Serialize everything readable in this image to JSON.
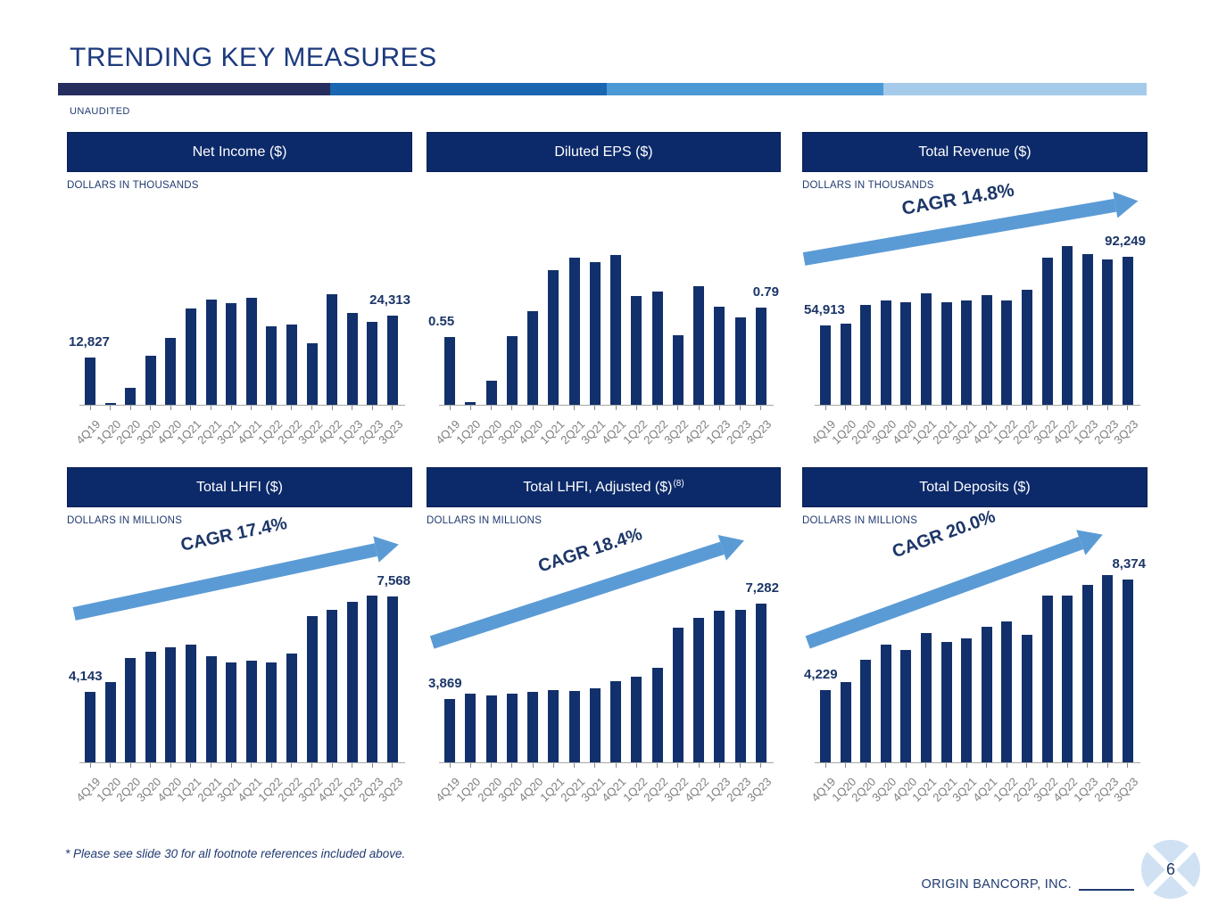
{
  "slide": {
    "title": "TRENDING KEY MEASURES",
    "unaudited_label": "UNAUDITED",
    "footnote": "* Please see slide 30 for all footnote references included above.",
    "company": "ORIGIN BANCORP, INC.",
    "page_number": "6"
  },
  "colors": {
    "bar": "#12306b",
    "header_bg": "#0c2a6a",
    "title_text": "#1c3a7e",
    "arrow": "#5b9bd5",
    "tick_label": "#7f7f7f",
    "accent_segments": [
      "#262d5f",
      "#1b66b1",
      "#4b9ad6",
      "#a6cbea"
    ],
    "logo_circle": "#cfe1f3"
  },
  "chart_data": [
    {
      "id": "net-income",
      "type": "bar",
      "title": "Net Income ($)",
      "title_sup": "",
      "units": "DOLLARS IN THOUSANDS",
      "categories": [
        "4Q19",
        "1Q20",
        "2Q20",
        "3Q20",
        "4Q20",
        "1Q21",
        "2Q21",
        "3Q21",
        "4Q21",
        "1Q22",
        "2Q22",
        "3Q22",
        "4Q22",
        "1Q23",
        "2Q23",
        "3Q23"
      ],
      "values": [
        12827,
        500,
        4678,
        13312,
        18238,
        26065,
        28484,
        27615,
        29120,
        21216,
        21917,
        16663,
        30164,
        24854,
        22540,
        24313
      ],
      "first_label": "12,827",
      "last_label": "24,313",
      "cagr": "",
      "ylim": [
        0,
        31000
      ],
      "grid": false,
      "legend": "none"
    },
    {
      "id": "diluted-eps",
      "type": "bar",
      "title": "Diluted EPS ($)",
      "title_sup": "",
      "units": "",
      "categories": [
        "4Q19",
        "1Q20",
        "2Q20",
        "3Q20",
        "4Q20",
        "1Q21",
        "2Q21",
        "3Q21",
        "4Q21",
        "1Q22",
        "2Q22",
        "3Q22",
        "4Q22",
        "1Q23",
        "2Q23",
        "3Q23"
      ],
      "values": [
        0.55,
        0.02,
        0.2,
        0.56,
        0.76,
        1.1,
        1.2,
        1.16,
        1.22,
        0.89,
        0.92,
        0.57,
        0.97,
        0.8,
        0.71,
        0.79
      ],
      "first_label": "0.55",
      "last_label": "0.79",
      "cagr": "",
      "ylim": [
        0,
        1.25
      ],
      "grid": false,
      "legend": "none"
    },
    {
      "id": "total-revenue",
      "type": "bar",
      "title": "Total Revenue ($)",
      "title_sup": "",
      "units": "DOLLARS IN THOUSANDS",
      "categories": [
        "4Q19",
        "1Q20",
        "2Q20",
        "3Q20",
        "4Q20",
        "1Q21",
        "2Q21",
        "3Q21",
        "4Q21",
        "1Q22",
        "2Q22",
        "3Q22",
        "4Q22",
        "1Q23",
        "2Q23",
        "3Q23"
      ],
      "values": [
        54913,
        56019,
        66144,
        68675,
        67568,
        72630,
        67568,
        68675,
        71365,
        68834,
        74370,
        92000,
        97930,
        93671,
        90981,
        92249
      ],
      "first_label": "54,913",
      "last_label": "92,249",
      "cagr": "CAGR 14.8%",
      "ylim": [
        12000,
        100000
      ],
      "grid": false,
      "legend": "none"
    },
    {
      "id": "total-lhfi",
      "type": "bar",
      "title": "Total LHFI ($)",
      "title_sup": "",
      "units": "DOLLARS IN MILLIONS",
      "categories": [
        "4Q19",
        "1Q20",
        "2Q20",
        "3Q20",
        "4Q20",
        "1Q21",
        "2Q21",
        "3Q21",
        "4Q21",
        "1Q22",
        "2Q22",
        "3Q22",
        "4Q22",
        "1Q23",
        "2Q23",
        "3Q23"
      ],
      "values": [
        4143,
        4505,
        5360,
        5595,
        5755,
        5855,
        5425,
        5210,
        5265,
        5190,
        5520,
        6890,
        7095,
        7395,
        7630,
        7568
      ],
      "first_label": "4,143",
      "last_label": "7,568",
      "cagr": "CAGR 17.4%",
      "ylim": [
        1600,
        8000
      ],
      "grid": false,
      "legend": "none"
    },
    {
      "id": "total-lhfi-adjusted",
      "type": "bar",
      "title": "Total LHFI, Adjusted ($)",
      "title_sup": "(8)",
      "units": "DOLLARS IN MILLIONS",
      "categories": [
        "4Q19",
        "1Q20",
        "2Q20",
        "3Q20",
        "4Q20",
        "1Q21",
        "2Q21",
        "3Q21",
        "4Q21",
        "1Q22",
        "2Q22",
        "3Q22",
        "4Q22",
        "1Q23",
        "2Q23",
        "3Q23"
      ],
      "values": [
        3869,
        4070,
        3995,
        4070,
        4125,
        4175,
        4155,
        4260,
        4515,
        4665,
        4995,
        6430,
        6780,
        7025,
        7060,
        7282
      ],
      "first_label": "3,869",
      "last_label": "7,282",
      "cagr": "CAGR 18.4%",
      "ylim": [
        1600,
        7500
      ],
      "grid": false,
      "legend": "none"
    },
    {
      "id": "total-deposits",
      "type": "bar",
      "title": "Total Deposits ($)",
      "title_sup": "",
      "units": "DOLLARS IN MILLIONS",
      "categories": [
        "4Q19",
        "1Q20",
        "2Q20",
        "3Q20",
        "4Q20",
        "1Q21",
        "2Q21",
        "3Q21",
        "4Q21",
        "1Q22",
        "2Q22",
        "3Q22",
        "4Q22",
        "1Q23",
        "2Q23",
        "3Q23"
      ],
      "values": [
        4229,
        4560,
        5365,
        5950,
        5755,
        6360,
        6030,
        6160,
        6595,
        6790,
        6315,
        7765,
        7765,
        8185,
        8540,
        8374
      ],
      "first_label": "4,229",
      "last_label": "8,374",
      "cagr": "CAGR 20.0%",
      "ylim": [
        1550,
        8800
      ],
      "grid": false,
      "legend": "none"
    }
  ]
}
